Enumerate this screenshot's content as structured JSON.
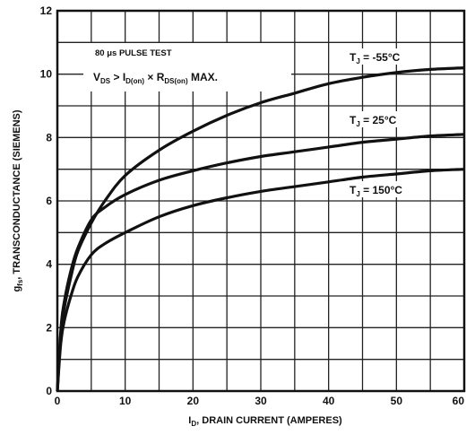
{
  "chart_data": {
    "type": "line",
    "xlabel": "I_D, DRAIN CURRENT (AMPERES)",
    "ylabel": "g_fs, TRANSCONDUCTANCE (SIEMENS)",
    "xlim": [
      0,
      60
    ],
    "ylim": [
      0,
      12
    ],
    "x_ticks": [
      "0",
      "10",
      "20",
      "30",
      "40",
      "50",
      "60"
    ],
    "y_ticks": [
      "0",
      "2",
      "4",
      "6",
      "8",
      "10",
      "12"
    ],
    "grid": true,
    "annotation": {
      "pulse": "80 μs PULSE TEST",
      "condition": "V_DS > I_D(on) × R_DS(on) MAX."
    },
    "series": [
      {
        "name": "T_J = -55°C",
        "x": [
          0,
          0.5,
          1,
          2,
          3,
          5,
          7,
          10,
          15,
          20,
          25,
          30,
          35,
          40,
          45,
          50,
          55,
          60
        ],
        "y": [
          0,
          1.8,
          2.6,
          3.6,
          4.4,
          5.3,
          6.0,
          6.8,
          7.6,
          8.2,
          8.7,
          9.1,
          9.4,
          9.7,
          9.9,
          10.05,
          10.15,
          10.2
        ]
      },
      {
        "name": "T_J = 25°C",
        "x": [
          0,
          0.5,
          1,
          2,
          3,
          5,
          7,
          10,
          15,
          20,
          25,
          30,
          35,
          40,
          45,
          50,
          55,
          60
        ],
        "y": [
          0,
          1.9,
          2.8,
          3.8,
          4.5,
          5.4,
          5.8,
          6.2,
          6.65,
          6.95,
          7.2,
          7.4,
          7.55,
          7.7,
          7.85,
          7.95,
          8.05,
          8.1
        ]
      },
      {
        "name": "T_J = 150°C",
        "x": [
          0,
          0.5,
          1,
          2,
          3,
          5,
          7,
          10,
          15,
          20,
          25,
          30,
          35,
          40,
          45,
          50,
          55,
          60
        ],
        "y": [
          0,
          1.5,
          2.2,
          3.0,
          3.6,
          4.3,
          4.65,
          5.0,
          5.5,
          5.85,
          6.1,
          6.3,
          6.45,
          6.6,
          6.75,
          6.85,
          6.95,
          7.0
        ]
      }
    ]
  },
  "labels": {
    "series_0": {
      "main": "T",
      "sub": "J",
      "rest": " = -55°C"
    },
    "series_1": {
      "main": "T",
      "sub": "J",
      "rest": " = 25°C"
    },
    "series_2": {
      "main": "T",
      "sub": "J",
      "rest": " = 150°C"
    },
    "pulse_text": "80 μs PULSE TEST",
    "cond_vds": "V",
    "cond_vds_sub": "DS",
    "cond_gt": " > I",
    "cond_id_sub": "D(on)",
    "cond_x": " × R",
    "cond_rds_sub": "DS(on)",
    "cond_max": " MAX.",
    "x_axis_main": "I",
    "x_axis_sub": "D",
    "x_axis_rest": ", DRAIN CURRENT (AMPERES)",
    "y_axis_main": "g",
    "y_axis_sub": "fs",
    "y_axis_rest": ", TRANSCONDUCTANCE (SIEMENS)"
  },
  "colors": {
    "ink": "#111111",
    "grid": "#222222",
    "background": "#ffffff"
  }
}
